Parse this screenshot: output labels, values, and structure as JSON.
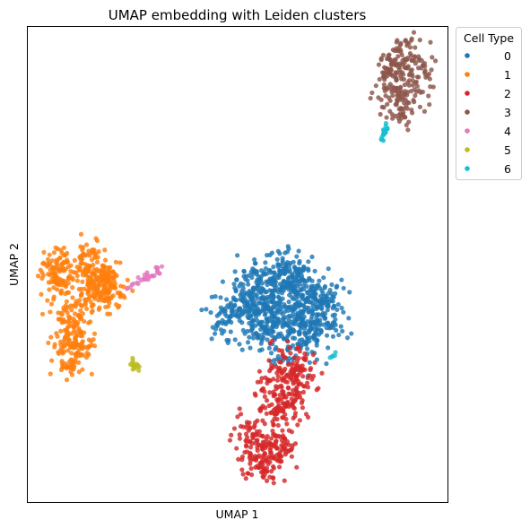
{
  "chart_data": {
    "type": "scatter",
    "title": "UMAP embedding with Leiden clusters",
    "xlabel": "UMAP 1",
    "ylabel": "UMAP 2",
    "xlim": [
      0,
      100
    ],
    "ylim": [
      0,
      100
    ],
    "grid": false,
    "legend": {
      "title": "Cell Type",
      "placement": "outside-top-right"
    },
    "series": [
      {
        "name": "0",
        "color": "#1f77b4",
        "n": 900,
        "points": [
          [
            60.0,
            40.5
          ],
          [
            66.5,
            43.5
          ],
          [
            60.5,
            47.0
          ],
          [
            54.0,
            43.5
          ],
          [
            65.0,
            37.0
          ],
          [
            57.0,
            37.5
          ],
          [
            72.0,
            40.0
          ],
          [
            48.0,
            38.5
          ],
          [
            62.0,
            48.5
          ],
          [
            55.5,
            46.0
          ],
          [
            67.5,
            39.0
          ],
          [
            52.0,
            41.0
          ],
          [
            63.5,
            34.5
          ],
          [
            58.0,
            34.0
          ],
          [
            70.0,
            42.0
          ]
        ]
      },
      {
        "name": "1",
        "color": "#ff7f0e",
        "n": 560,
        "points": [
          [
            14.0,
            49.0
          ],
          [
            17.5,
            47.5
          ],
          [
            8.0,
            46.0
          ],
          [
            13.0,
            41.0
          ],
          [
            11.0,
            37.5
          ],
          [
            10.0,
            33.0
          ],
          [
            20.0,
            43.5
          ],
          [
            7.5,
            51.0
          ],
          [
            15.5,
            51.5
          ],
          [
            9.0,
            40.5
          ],
          [
            12.5,
            33.0
          ],
          [
            16.0,
            44.0
          ],
          [
            11.0,
            29.5
          ],
          [
            6.5,
            48.5
          ],
          [
            19.0,
            46.5
          ]
        ]
      },
      {
        "name": "2",
        "color": "#d62728",
        "n": 430,
        "points": [
          [
            62.0,
            24.0
          ],
          [
            58.5,
            20.5
          ],
          [
            61.0,
            18.0
          ],
          [
            56.0,
            14.0
          ],
          [
            64.0,
            26.0
          ],
          [
            60.0,
            11.0
          ],
          [
            55.0,
            9.0
          ],
          [
            63.0,
            21.5
          ],
          [
            57.5,
            7.0
          ],
          [
            52.0,
            15.5
          ],
          [
            59.0,
            13.0
          ],
          [
            66.0,
            28.5
          ],
          [
            54.0,
            11.5
          ],
          [
            61.5,
            30.0
          ],
          [
            58.0,
            26.0
          ]
        ]
      },
      {
        "name": "3",
        "color": "#8c564b",
        "n": 240,
        "points": [
          [
            89.0,
            88.0
          ],
          [
            91.5,
            91.0
          ],
          [
            87.0,
            85.0
          ],
          [
            90.5,
            86.5
          ],
          [
            88.0,
            93.5
          ],
          [
            92.5,
            88.5
          ],
          [
            86.5,
            90.5
          ],
          [
            89.5,
            81.5
          ],
          [
            93.0,
            92.0
          ],
          [
            85.5,
            87.5
          ],
          [
            90.0,
            95.5
          ],
          [
            87.5,
            83.0
          ],
          [
            91.0,
            84.0
          ],
          [
            88.5,
            90.0
          ],
          [
            86.0,
            93.0
          ]
        ]
      },
      {
        "name": "4",
        "color": "#e377c2",
        "n": 30,
        "points": [
          [
            30.5,
            49.0
          ],
          [
            31.5,
            49.5
          ],
          [
            28.5,
            47.5
          ],
          [
            27.0,
            47.0
          ],
          [
            29.5,
            48.0
          ],
          [
            25.0,
            45.5
          ],
          [
            26.5,
            46.5
          ],
          [
            24.0,
            45.0
          ],
          [
            31.0,
            48.5
          ],
          [
            28.0,
            47.2
          ],
          [
            30.0,
            49.8
          ],
          [
            26.0,
            46.2
          ]
        ]
      },
      {
        "name": "5",
        "color": "#bcbd22",
        "n": 18,
        "points": [
          [
            25.0,
            29.3
          ],
          [
            25.4,
            28.6
          ],
          [
            25.9,
            28.2
          ],
          [
            24.7,
            29.0
          ],
          [
            25.6,
            29.6
          ],
          [
            26.0,
            28.9
          ],
          [
            24.9,
            28.4
          ],
          [
            25.3,
            29.9
          ],
          [
            26.2,
            28.0
          ]
        ]
      },
      {
        "name": "6",
        "color": "#17becf",
        "n": 25,
        "points": [
          [
            84.3,
            76.0
          ],
          [
            84.8,
            77.5
          ],
          [
            85.3,
            78.5
          ],
          [
            85.1,
            79.5
          ],
          [
            84.6,
            76.8
          ],
          [
            85.0,
            78.0
          ],
          [
            72.5,
            30.8
          ],
          [
            73.0,
            31.3
          ],
          [
            73.5,
            31.8
          ],
          [
            72.8,
            31.0
          ]
        ]
      }
    ]
  }
}
